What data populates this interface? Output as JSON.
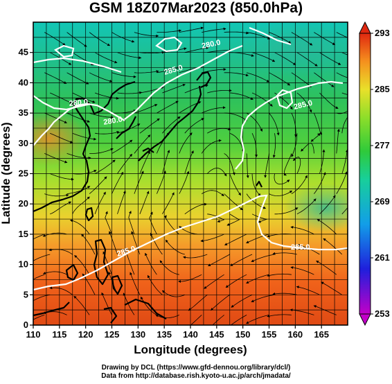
{
  "title": "GSM 18Z07Mar2023 (850.0hPa)",
  "xaxis": {
    "label": "Longitude (degrees)",
    "ticks": [
      "110",
      "115",
      "120",
      "125",
      "130",
      "135",
      "140",
      "145",
      "150",
      "155",
      "160",
      "165"
    ]
  },
  "yaxis": {
    "label": "Latitude  (degrees)",
    "ticks": [
      "0",
      "5",
      "10",
      "15",
      "20",
      "25",
      "30",
      "35",
      "40",
      "45"
    ]
  },
  "colorbar": {
    "ticks": [
      "293",
      "285",
      "277",
      "269",
      "261",
      "253"
    ]
  },
  "contour_labels": [
    "280.0",
    "280.0",
    "280.0",
    "285.0",
    "285.0",
    "285.0",
    "285.0"
  ],
  "credits": {
    "line1": "Drawing by DCL (https://www.gfd-dennou.org/library/dcl/)",
    "line2": "Data from http://database.rish.kyoto-u.ac.jp/arch/jmadata/"
  },
  "chart_data": {
    "type": "heatmap",
    "title": "GSM 18Z07Mar2023 (850.0hPa)",
    "xlabel": "Longitude (degrees)",
    "ylabel": "Latitude  (degrees)",
    "xlim": [
      110,
      170
    ],
    "ylim": [
      0,
      50
    ],
    "color_range": [
      253,
      293
    ],
    "contours": [
      280,
      285
    ],
    "grid": true
  }
}
